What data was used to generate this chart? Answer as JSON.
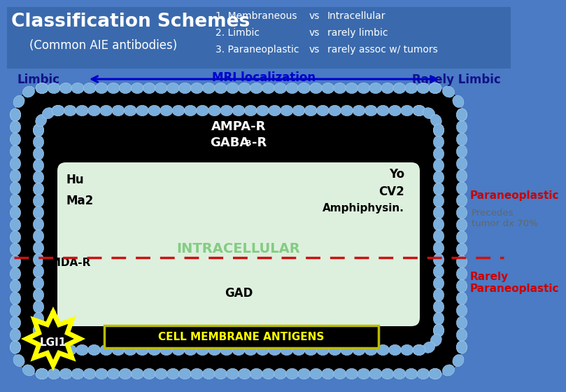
{
  "bg_header_color": "#3a6aad",
  "bg_main_color": "#4a7bc4",
  "title_text": "Classification Schemes",
  "subtitle_text": "(Common AIE antibodies)",
  "scheme1_col1": "1. Membraneous",
  "scheme1_vs": "vs",
  "scheme1_col2": "Intracellular",
  "scheme2_col1": "2. Limbic",
  "scheme2_vs": "vs",
  "scheme2_col2": "rarely limbic",
  "scheme3_col1": "3. Paraneoplastic",
  "scheme3_vs": "vs",
  "scheme3_col2": "rarely assoc w/ tumors",
  "arrow_label": "MRI localization",
  "left_label": "Limbic",
  "right_label": "Rarely Limbic",
  "bead_color": "#7aaedc",
  "bead_color2": "#5599cc",
  "ampa_text": "AMPA-R",
  "gaba_text": "GABA",
  "gaba_sub": "B",
  "gaba_suffix": "-R",
  "hu_text": "Hu",
  "ma2_text": "Ma2",
  "yo_text": "Yo",
  "cv2_text": "CV2",
  "amphiphysin_text": "Amphiphysin.",
  "intracellular_text": "INTRACELLULAR",
  "nmda_text": "NMDA-R",
  "gad_text": "GAD",
  "lgi1_text": "LGI1",
  "cell_membrane_text": "CELL MEMBRANE ANTIGENS",
  "paraneoplastic_text": "Paraneoplastic",
  "precedes_text": "Precedes\ntumor dx 70%",
  "rarely_para_text": "Rarely\nParaneoplastic",
  "dashed_line_color": "#cc1111",
  "yellow_star_color": "#ffff00",
  "arrow_color": "#0000cc",
  "inner_rect_color": "#ddf0dd",
  "inner_rect_color2": "#c8e8c8"
}
